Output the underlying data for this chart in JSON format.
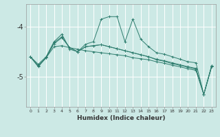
{
  "xlabel": "Humidex (Indice chaleur)",
  "x": [
    0,
    1,
    2,
    3,
    4,
    5,
    6,
    7,
    8,
    9,
    10,
    11,
    12,
    13,
    14,
    15,
    16,
    17,
    18,
    19,
    20,
    21,
    22,
    23
  ],
  "line1": [
    -4.6,
    -4.75,
    -4.6,
    -4.3,
    -4.15,
    -4.45,
    -4.5,
    -4.35,
    -4.3,
    -3.85,
    -3.8,
    -3.8,
    -4.3,
    -3.85,
    -4.25,
    -4.4,
    -4.52,
    -4.55,
    -4.6,
    -4.65,
    -4.7,
    -4.72,
    -5.35,
    -4.78
  ],
  "line2": [
    -4.6,
    -4.8,
    -4.62,
    -4.4,
    -4.38,
    -4.42,
    -4.45,
    -4.48,
    -4.5,
    -4.52,
    -4.54,
    -4.56,
    -4.58,
    -4.62,
    -4.64,
    -4.66,
    -4.7,
    -4.73,
    -4.77,
    -4.8,
    -4.84,
    -4.87,
    -5.35,
    -4.8
  ],
  "line3": [
    -4.6,
    -4.78,
    -4.62,
    -4.32,
    -4.2,
    -4.42,
    -4.5,
    -4.4,
    -4.38,
    -4.36,
    -4.4,
    -4.44,
    -4.48,
    -4.52,
    -4.56,
    -4.6,
    -4.65,
    -4.68,
    -4.72,
    -4.76,
    -4.8,
    -4.83,
    -5.35,
    -4.78
  ],
  "line4": [
    -4.6,
    -4.78,
    -4.62,
    -4.34,
    -4.22,
    -4.42,
    -4.5,
    -4.4,
    -4.38,
    -4.36,
    -4.4,
    -4.44,
    -4.48,
    -4.52,
    -4.56,
    -4.6,
    -4.66,
    -4.69,
    -4.74,
    -4.77,
    -4.81,
    -4.85,
    -5.35,
    -4.79
  ],
  "line_color": "#2e7d6e",
  "background_color": "#cce9e5",
  "grid_color": "#ffffff",
  "ylim": [
    -5.6,
    -3.55
  ],
  "yticks": [
    -5.0,
    -4.0
  ],
  "ytick_labels": [
    "-5",
    "-4"
  ],
  "xlim": [
    -0.5,
    23.5
  ],
  "xlabel_fontsize": 6.5,
  "xtick_fontsize": 4.5,
  "ytick_fontsize": 7
}
